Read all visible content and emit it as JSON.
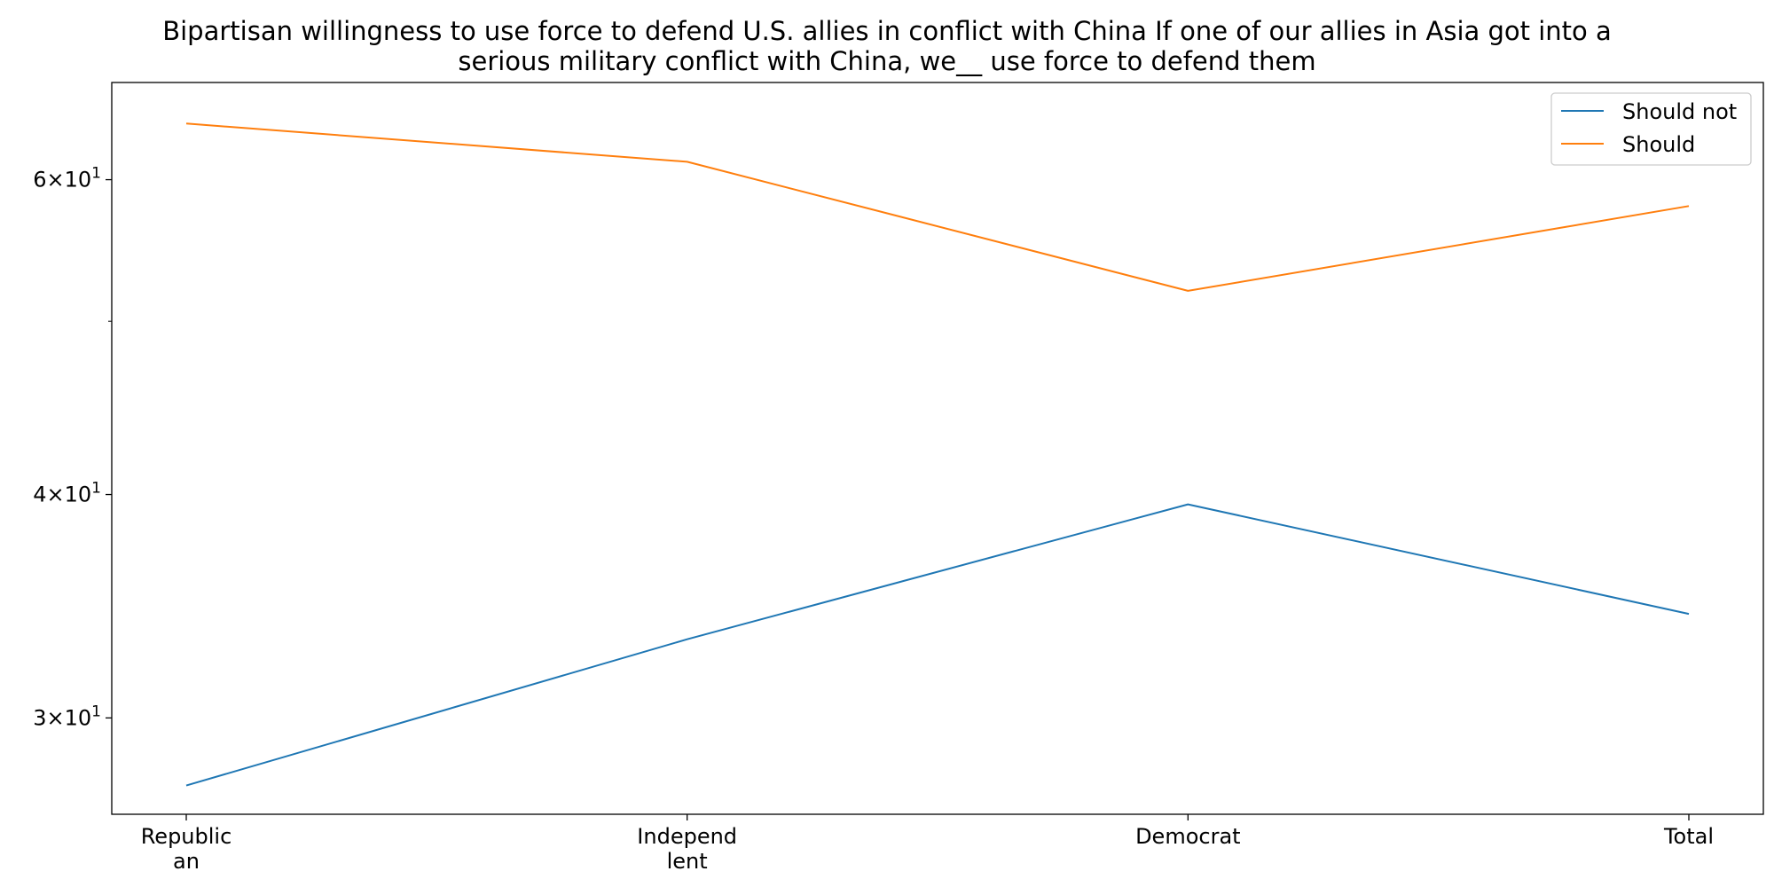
{
  "chart_data": {
    "type": "line",
    "title_lines": [
      "Bipartisan willingness to use force to defend U.S. allies in conflict with China If one of our allies in Asia got into a",
      "serious military conflict with China, we__ use force to defend them"
    ],
    "xlabel": "",
    "ylabel": "",
    "yscale": "log",
    "ylim": [
      26.5,
      68
    ],
    "categories": [
      [
        "Republic",
        "an"
      ],
      [
        "Independ",
        "lent"
      ],
      [
        "Democrat"
      ],
      [
        "Total"
      ]
    ],
    "y_ticks": [
      {
        "value": 30,
        "label_mantissa": "3",
        "label_base": "10",
        "label_exp": "1"
      },
      {
        "value": 40,
        "label_mantissa": "4",
        "label_base": "10",
        "label_exp": "1"
      },
      {
        "value": 60,
        "label_mantissa": "6",
        "label_base": "10",
        "label_exp": "1"
      }
    ],
    "y_minor_ticks": [
      50
    ],
    "series": [
      {
        "name": "Should not",
        "color": "#1f77b4",
        "values": [
          27.5,
          33.2,
          39.5,
          34.3
        ]
      },
      {
        "name": "Should",
        "color": "#ff7f0e",
        "values": [
          64.5,
          61.4,
          52.0,
          58.0
        ]
      }
    ],
    "legend_position": "upper-right",
    "grid": false
  }
}
